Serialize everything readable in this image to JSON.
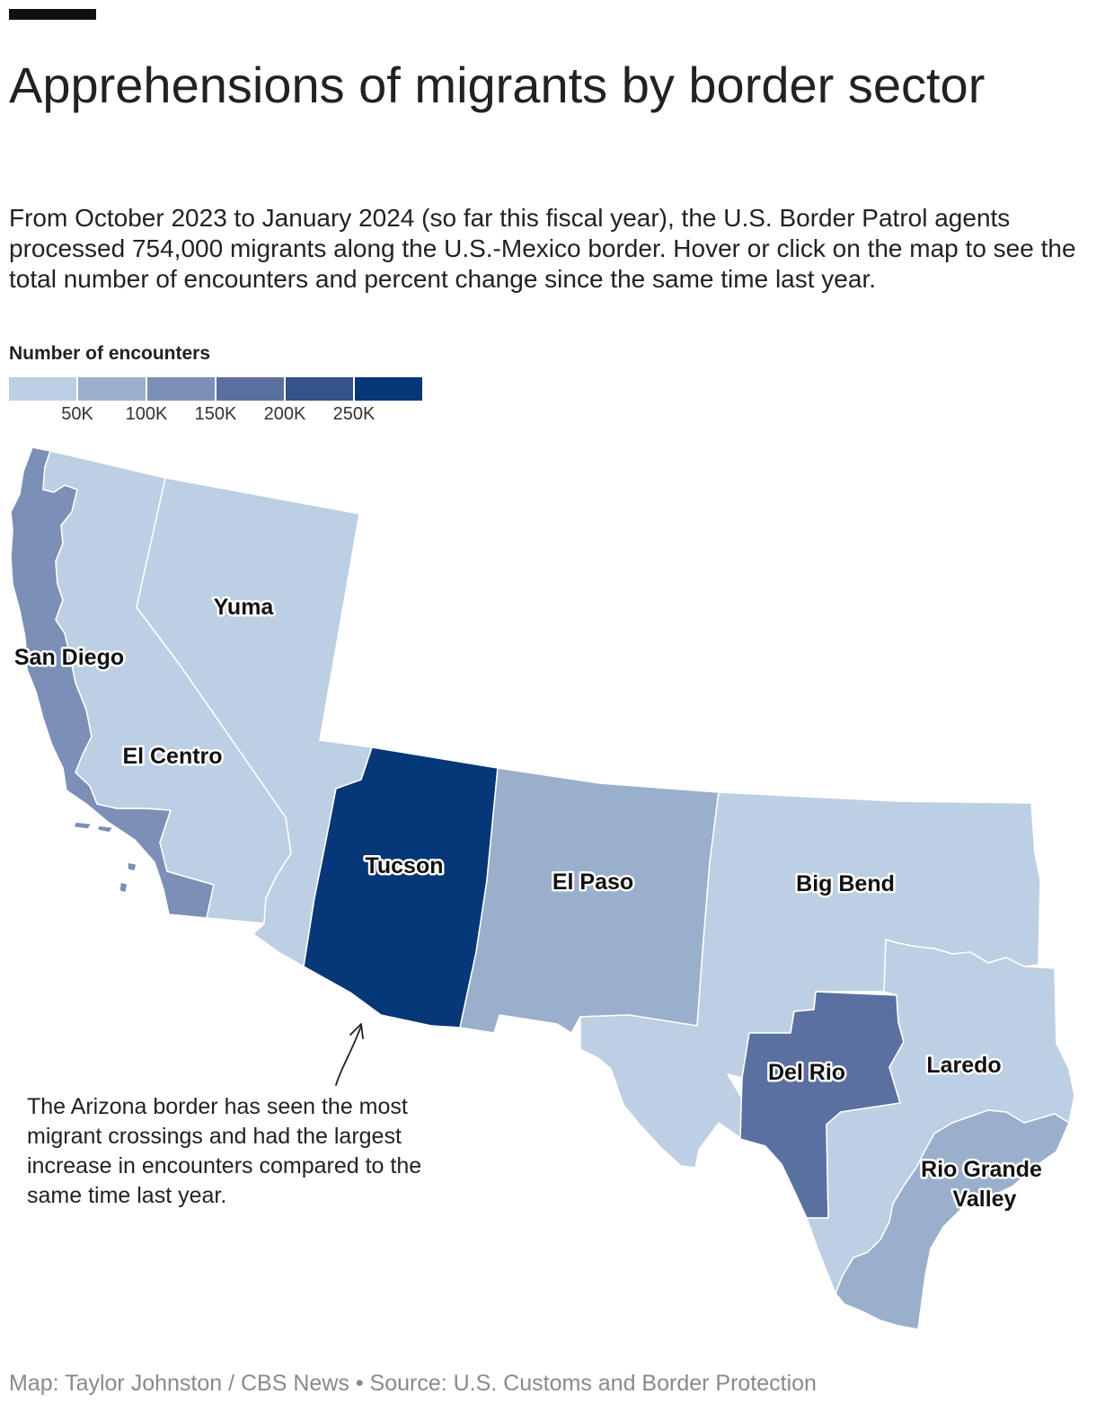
{
  "title": "Apprehensions of migrants by border sector",
  "subtitle": "From October 2023 to January 2024 (so far this fiscal year), the U.S. Border Patrol agents processed 754,000 migrants along the U.S.-Mexico border. Hover or click on the map to see the total number of encounters and percent change since the same time last year.",
  "legend": {
    "title": "Number of encounters",
    "colors": [
      "#bccfe3",
      "#9aafcc",
      "#7b8fb7",
      "#5a70a0",
      "#36528b",
      "#063777"
    ],
    "ticks": [
      "50K",
      "100K",
      "150K",
      "200K",
      "250K"
    ]
  },
  "sectors": [
    {
      "name": "San Diego",
      "color": "#7b8fb7"
    },
    {
      "name": "El Centro",
      "color": "#bccfe3"
    },
    {
      "name": "Yuma",
      "color": "#bccfe3"
    },
    {
      "name": "Tucson",
      "color": "#063777"
    },
    {
      "name": "El Paso",
      "color": "#9aafcc"
    },
    {
      "name": "Big Bend",
      "color": "#bccfe3"
    },
    {
      "name": "Del Rio",
      "color": "#5a70a0"
    },
    {
      "name": "Laredo",
      "color": "#bccfe3"
    },
    {
      "name": "Rio Grande\nValley",
      "color": "#9aafcc"
    }
  ],
  "annotation": "The Arizona border has seen the most migrant crossings and had the largest increase in encounters compared to the same time last year.",
  "footer": "Map: Taylor Johnston / CBS News • Source: U.S. Customs and Border Protection"
}
